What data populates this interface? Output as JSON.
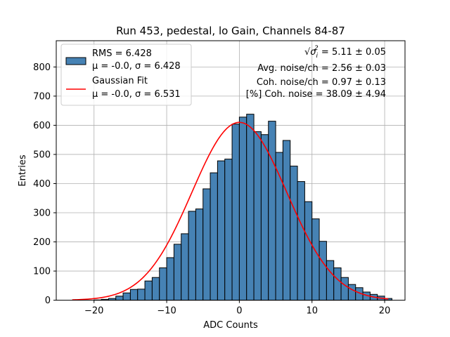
{
  "chart_data": {
    "type": "bar",
    "title": "Run 453, pedestal, lo Gain, Channels 84-87",
    "xlabel": "ADC Counts",
    "ylabel": "Entries",
    "xlim": [
      -25.2,
      22.8
    ],
    "ylim": [
      0,
      890
    ],
    "xticks": [
      -20,
      -10,
      0,
      10,
      20
    ],
    "xtick_labels": [
      "−20",
      "−10",
      "0",
      "10",
      "20"
    ],
    "yticks": [
      0,
      100,
      200,
      300,
      400,
      500,
      600,
      700,
      800
    ],
    "ytick_labels": [
      "0",
      "100",
      "200",
      "300",
      "400",
      "500",
      "600",
      "700",
      "800"
    ],
    "grid": true,
    "legend_position": "top-left",
    "bin_width": 1,
    "bin_left_edges": [
      -20,
      -19,
      -18,
      -17,
      -16,
      -15,
      -14,
      -13,
      -12,
      -11,
      -10,
      -9,
      -8,
      -7,
      -6,
      -5,
      -4,
      -3,
      -2,
      -1,
      0,
      1,
      2,
      3,
      4,
      5,
      6,
      7,
      8,
      9,
      10,
      11,
      12,
      13,
      14,
      15,
      16,
      17,
      18,
      19,
      20
    ],
    "histogram_counts": [
      1,
      3,
      6,
      14,
      25,
      37,
      38,
      66,
      78,
      111,
      146,
      192,
      228,
      305,
      313,
      382,
      437,
      478,
      484,
      604,
      628,
      638,
      578,
      568,
      614,
      507,
      548,
      460,
      407,
      338,
      279,
      202,
      136,
      111,
      78,
      54,
      43,
      28,
      20,
      14,
      6
    ],
    "series": [
      {
        "name": "RMS = 6.428",
        "name_line2": "μ = -0.0, σ = 6.428",
        "type": "histogram",
        "color": "#4682b4",
        "edge_color": "#000000"
      },
      {
        "name": "Gaussian Fit",
        "name_line2": "μ = -0.0, σ = 6.531",
        "type": "line",
        "color": "#ff0000",
        "mu": 0.0,
        "sigma": 6.531,
        "amplitude": 610,
        "x_range": [
          -23,
          20.5
        ]
      }
    ],
    "annotations": [
      {
        "prefix": "√",
        "var": "σ",
        "sub": "i",
        "sup": "2",
        "text": " = 5.11 ± 0.05"
      },
      {
        "text": "Avg. noise/ch = 2.56 ± 0.03"
      },
      {
        "text": "Coh. noise/ch = 0.97 ± 0.13"
      },
      {
        "text": "[%] Coh. noise = 38.09 ± 4.94"
      }
    ]
  }
}
